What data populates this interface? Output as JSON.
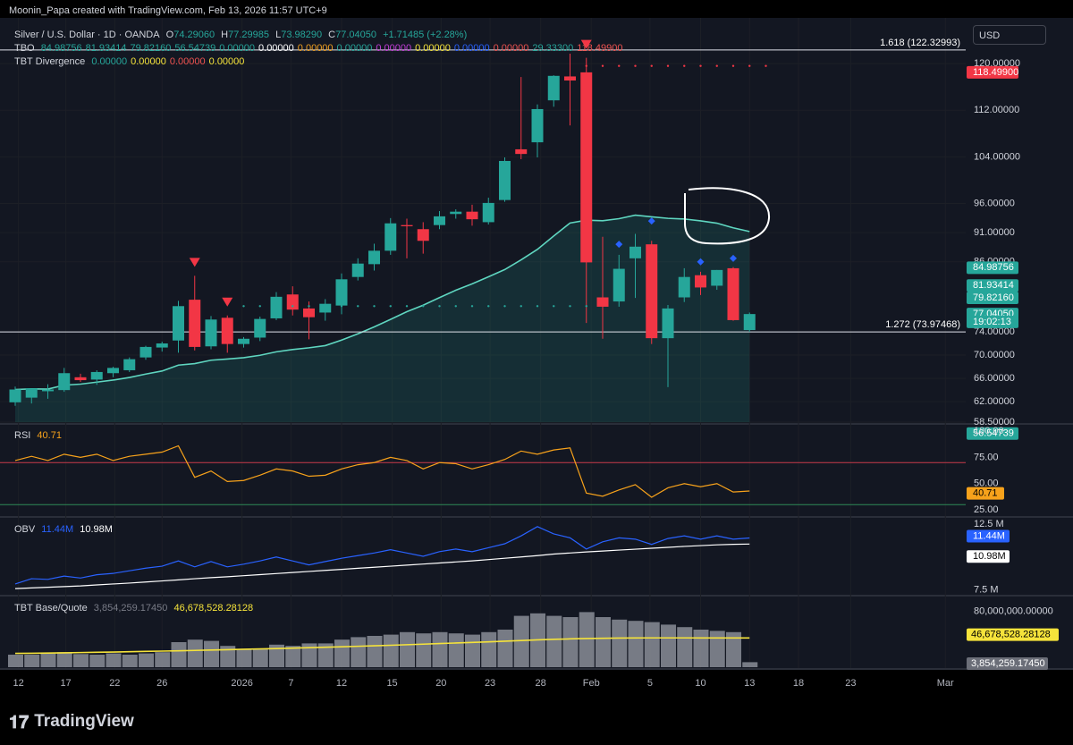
{
  "header": {
    "attribution": "Moonin_Papa created with TradingView.com, Feb 13, 2026 11:57 UTC+9",
    "symbol": "Silver / U.S. Dollar · 1D · OANDA",
    "o_label": "O",
    "o": "74.29060",
    "h_label": "H",
    "h": "77.29985",
    "l_label": "L",
    "l": "73.98290",
    "c_label": "C",
    "c": "77.04050",
    "change": "+1.71485 (+2.28%)",
    "tbo_label": "TBO",
    "tbo_values": [
      {
        "v": "84.98756",
        "color": "#26a69a"
      },
      {
        "v": "81.93414",
        "color": "#26a69a"
      },
      {
        "v": "79.82160",
        "color": "#26a69a"
      },
      {
        "v": "56.54739",
        "color": "#26a69a"
      },
      {
        "v": "0.00000",
        "color": "#26a69a"
      },
      {
        "v": "0.00000",
        "color": "#ffffff"
      },
      {
        "v": "0.00000",
        "color": "#f0a020"
      },
      {
        "v": "0.00000",
        "color": "#26a69a"
      },
      {
        "v": "0.00000",
        "color": "#c33dd8"
      },
      {
        "v": "0.00000",
        "color": "#f5e33b"
      },
      {
        "v": "0.00000",
        "color": "#2962ff"
      },
      {
        "v": "0.00000",
        "color": "#ef5350"
      },
      {
        "v": "29.33300",
        "color": "#26a69a"
      },
      {
        "v": "118.49900",
        "color": "#ef5350"
      }
    ],
    "tbt_div_label": "TBT Divergence",
    "tbt_div_values": [
      {
        "v": "0.00000",
        "color": "#26a69a"
      },
      {
        "v": "0.00000",
        "color": "#f5e33b"
      },
      {
        "v": "0.00000",
        "color": "#ef5350"
      },
      {
        "v": "0.00000",
        "color": "#f5e33b"
      }
    ]
  },
  "currency_button": "USD",
  "brand": "TradingView",
  "colors": {
    "up": "#26a69a",
    "down": "#f23645",
    "ma": "#5fd6c0",
    "rsi": "#f7a21b",
    "obv": "#2962ff",
    "obv_ma": "#ffffff",
    "vol_ma": "#f5e33b",
    "grid": "#1c1f26"
  },
  "chart_data": [
    {
      "type": "candlestick",
      "title": "Silver / U.S. Dollar · 1D · OANDA",
      "ylim": [
        58.5,
        126
      ],
      "y_ticks": [
        "120.00000",
        "112.00000",
        "104.00000",
        "96.00000",
        "91.00000",
        "86.00000",
        "74.00000",
        "70.00000",
        "66.00000",
        "62.00000",
        "58.50000"
      ],
      "x_ticks": [
        "12",
        "17",
        "22",
        "26",
        "2026",
        "7",
        "12",
        "15",
        "20",
        "23",
        "28",
        "Feb",
        "5",
        "10",
        "13",
        "18",
        "23",
        "Mar"
      ],
      "candles": [
        {
          "d": "Dec 11",
          "o": 61.9,
          "h": 64.6,
          "l": 61.3,
          "c": 64.1
        },
        {
          "d": "Dec 12",
          "o": 62.7,
          "h": 64.2,
          "l": 61.7,
          "c": 64.3
        },
        {
          "d": "Dec 15",
          "o": 63.8,
          "h": 65.0,
          "l": 62.5,
          "c": 64.1
        },
        {
          "d": "Dec 16",
          "o": 64.0,
          "h": 67.8,
          "l": 63.7,
          "c": 66.9
        },
        {
          "d": "Dec 17",
          "o": 66.2,
          "h": 66.8,
          "l": 65.4,
          "c": 65.7
        },
        {
          "d": "Dec 18",
          "o": 65.8,
          "h": 67.4,
          "l": 64.9,
          "c": 67.1
        },
        {
          "d": "Dec 19",
          "o": 66.9,
          "h": 68.0,
          "l": 66.2,
          "c": 67.8
        },
        {
          "d": "Dec 22",
          "o": 67.4,
          "h": 69.6,
          "l": 67.1,
          "c": 69.3
        },
        {
          "d": "Dec 23",
          "o": 69.6,
          "h": 71.6,
          "l": 69.2,
          "c": 71.4
        },
        {
          "d": "Dec 24",
          "o": 71.3,
          "h": 72.3,
          "l": 70.6,
          "c": 72.0
        },
        {
          "d": "Dec 26",
          "o": 72.5,
          "h": 79.3,
          "l": 70.4,
          "c": 78.4
        },
        {
          "d": "Dec 29",
          "o": 79.5,
          "h": 83.6,
          "l": 70.8,
          "c": 71.4
        },
        {
          "d": "Dec 30",
          "o": 71.5,
          "h": 76.7,
          "l": 71.0,
          "c": 76.1
        },
        {
          "d": "Dec 31",
          "o": 76.4,
          "h": 76.8,
          "l": 70.4,
          "c": 71.9
        },
        {
          "d": "Jan 1",
          "o": 71.9,
          "h": 73.1,
          "l": 71.3,
          "c": 72.8
        },
        {
          "d": "Jan 2",
          "o": 73.0,
          "h": 76.6,
          "l": 72.4,
          "c": 76.2
        },
        {
          "d": "Jan 5",
          "o": 76.3,
          "h": 80.8,
          "l": 76.0,
          "c": 80.0
        },
        {
          "d": "Jan 6",
          "o": 80.4,
          "h": 81.8,
          "l": 76.8,
          "c": 77.8
        },
        {
          "d": "Jan 7",
          "o": 78.0,
          "h": 79.2,
          "l": 72.7,
          "c": 76.5
        },
        {
          "d": "Jan 8",
          "o": 77.3,
          "h": 79.6,
          "l": 75.9,
          "c": 78.8
        },
        {
          "d": "Jan 9",
          "o": 78.5,
          "h": 84.0,
          "l": 77.0,
          "c": 83.0
        },
        {
          "d": "Jan 12",
          "o": 83.4,
          "h": 86.6,
          "l": 82.8,
          "c": 85.7
        },
        {
          "d": "Jan 13",
          "o": 85.6,
          "h": 89.1,
          "l": 84.5,
          "c": 87.9
        },
        {
          "d": "Jan 14",
          "o": 87.9,
          "h": 93.5,
          "l": 87.2,
          "c": 92.6
        },
        {
          "d": "Jan 15",
          "o": 92.3,
          "h": 93.4,
          "l": 86.6,
          "c": 92.1
        },
        {
          "d": "Jan 16",
          "o": 91.6,
          "h": 92.8,
          "l": 87.4,
          "c": 89.6
        },
        {
          "d": "Jan 19",
          "o": 92.3,
          "h": 94.7,
          "l": 91.6,
          "c": 93.8
        },
        {
          "d": "Jan 20",
          "o": 94.2,
          "h": 95.0,
          "l": 93.4,
          "c": 94.6
        },
        {
          "d": "Jan 21",
          "o": 94.6,
          "h": 95.8,
          "l": 92.2,
          "c": 93.3
        },
        {
          "d": "Jan 22",
          "o": 92.8,
          "h": 97.0,
          "l": 92.4,
          "c": 96.1
        },
        {
          "d": "Jan 23",
          "o": 96.6,
          "h": 103.9,
          "l": 96.3,
          "c": 103.3
        },
        {
          "d": "Jan 26",
          "o": 105.3,
          "h": 117.7,
          "l": 103.6,
          "c": 104.5
        },
        {
          "d": "Jan 27",
          "o": 106.5,
          "h": 113.0,
          "l": 103.9,
          "c": 112.2
        },
        {
          "d": "Jan 28",
          "o": 113.7,
          "h": 118.0,
          "l": 112.6,
          "c": 117.9
        },
        {
          "d": "Jan 29",
          "o": 117.8,
          "h": 121.7,
          "l": 109.4,
          "c": 117.1
        },
        {
          "d": "Jan 30",
          "o": 118.5,
          "h": 121.0,
          "l": 75.5,
          "c": 85.9
        },
        {
          "d": "Feb 2",
          "o": 79.9,
          "h": 90.3,
          "l": 72.8,
          "c": 78.3
        },
        {
          "d": "Feb 3",
          "o": 79.2,
          "h": 87.2,
          "l": 78.3,
          "c": 84.8
        },
        {
          "d": "Feb 4",
          "o": 86.6,
          "h": 90.8,
          "l": 79.8,
          "c": 88.6
        },
        {
          "d": "Feb 5",
          "o": 89.0,
          "h": 89.6,
          "l": 71.9,
          "c": 72.9
        },
        {
          "d": "Feb 6",
          "o": 72.9,
          "h": 78.6,
          "l": 64.5,
          "c": 78.0
        },
        {
          "d": "Feb 9",
          "o": 79.9,
          "h": 84.9,
          "l": 79.1,
          "c": 83.4
        },
        {
          "d": "Feb 10",
          "o": 83.7,
          "h": 84.3,
          "l": 80.3,
          "c": 81.6
        },
        {
          "d": "Feb 11",
          "o": 81.9,
          "h": 84.6,
          "l": 81.2,
          "c": 84.6
        },
        {
          "d": "Feb 12",
          "o": 84.9,
          "h": 85.1,
          "l": 75.9,
          "c": 76.0
        },
        {
          "d": "Feb 13",
          "o": 74.2906,
          "h": 77.29985,
          "l": 73.9829,
          "c": 77.0405
        }
      ],
      "fib_levels": [
        {
          "label": "1.618 (122.32993)",
          "value": 122.32993
        },
        {
          "label": "1.272 (73.97468)",
          "value": 73.97468
        }
      ],
      "price_tags": [
        {
          "label": "118.49900",
          "value": 118.499,
          "color": "#f23645",
          "text": "#ffffff"
        },
        {
          "label": "84.98756",
          "value": 84.98756,
          "color": "#26a69a",
          "text": "#ffffff"
        },
        {
          "label": "81.93414",
          "value": 81.93414,
          "color": "#26a69a",
          "text": "#ffffff"
        },
        {
          "label": "79.82160",
          "value": 79.8216,
          "color": "#26a69a",
          "text": "#ffffff"
        },
        {
          "label": "77.04050",
          "value": 77.0405,
          "color": "#26a69a",
          "text": "#ffffff"
        },
        {
          "label": "19:02:13",
          "value": 75.7,
          "color": "#26a69a",
          "text": "#ffffff"
        },
        {
          "label": "56.54739",
          "value": 56.54739,
          "color": "#26a69a",
          "text": "#ffffff"
        }
      ]
    },
    {
      "type": "line",
      "title": "RSI",
      "value": "40.71",
      "ylim": [
        20,
        100
      ],
      "y_ticks": [
        "100.00",
        "75.00",
        "50.00",
        "25.00"
      ],
      "bands": [
        70,
        30
      ],
      "values": [
        72,
        76,
        72,
        78,
        75,
        78,
        72,
        76,
        78,
        80,
        86,
        56,
        62,
        52,
        53,
        58,
        64,
        62,
        57,
        58,
        64,
        68,
        70,
        75,
        72,
        64,
        70,
        69,
        64,
        68,
        73,
        81,
        78,
        82,
        84,
        41,
        38,
        44,
        49,
        37,
        46,
        50,
        47,
        50,
        42,
        43
      ]
    },
    {
      "type": "line",
      "title": "OBV",
      "series": [
        {
          "name": "OBV",
          "value": "11.44M",
          "color": "#2962ff",
          "values": [
            7.95,
            8.35,
            8.3,
            8.55,
            8.4,
            8.65,
            8.75,
            8.95,
            9.15,
            9.3,
            9.7,
            9.25,
            9.65,
            9.25,
            9.45,
            9.7,
            10.0,
            9.7,
            9.4,
            9.65,
            9.9,
            10.1,
            10.3,
            10.55,
            10.3,
            10.05,
            10.4,
            10.6,
            10.4,
            10.7,
            11.0,
            11.6,
            12.3,
            11.75,
            11.45,
            10.6,
            11.15,
            11.45,
            11.35,
            10.95,
            11.4,
            11.6,
            11.35,
            11.6,
            11.35,
            11.44
          ]
        },
        {
          "name": "OBV MA",
          "value": "10.98M",
          "color": "#ffffff",
          "values": [
            7.6,
            7.65,
            7.7,
            7.75,
            7.8,
            7.88,
            7.95,
            8.02,
            8.1,
            8.18,
            8.26,
            8.35,
            8.43,
            8.5,
            8.58,
            8.66,
            8.74,
            8.82,
            8.9,
            8.98,
            9.06,
            9.14,
            9.22,
            9.3,
            9.38,
            9.46,
            9.54,
            9.62,
            9.7,
            9.8,
            9.9,
            10.0,
            10.1,
            10.22,
            10.3,
            10.38,
            10.45,
            10.52,
            10.59,
            10.66,
            10.73,
            10.8,
            10.86,
            10.92,
            10.96,
            10.98
          ]
        }
      ],
      "ylim": [
        7.2,
        12.9
      ],
      "y_ticks": [
        "12.5 M",
        "7.5 M"
      ]
    },
    {
      "type": "bar",
      "title": "TBT Base/Quote",
      "series_values": [
        {
          "label": "3,854,259.17450",
          "color": "#787b86"
        },
        {
          "label": "46,678,528.28128",
          "color": "#f5e33b"
        }
      ],
      "y_ticks": [
        "80,000,000.00000"
      ],
      "ylim": [
        0,
        90000000
      ],
      "values": [
        20,
        20,
        22,
        24,
        21,
        20,
        22,
        20,
        22,
        24,
        40,
        44,
        42,
        34,
        28,
        30,
        36,
        34,
        38,
        38,
        44,
        48,
        50,
        52,
        56,
        54,
        56,
        54,
        52,
        56,
        60,
        82,
        86,
        82,
        80,
        88,
        80,
        76,
        74,
        72,
        68,
        64,
        60,
        58,
        56,
        8
      ],
      "ma_values": [
        22,
        22.3,
        22.6,
        23,
        23.4,
        23.8,
        24.2,
        24.7,
        25.2,
        25.7,
        26.2,
        26.8,
        27.4,
        28,
        28.6,
        29.2,
        29.8,
        30.5,
        31.2,
        31.9,
        32.6,
        33.4,
        34.2,
        35,
        35.9,
        36.8,
        37.7,
        38.6,
        39.5,
        40.5,
        41.5,
        42.6,
        43.6,
        44.5,
        45.2,
        45.8,
        46.2,
        46.5,
        46.7,
        46.8,
        46.8,
        46.8,
        46.7,
        46.7,
        46.7,
        46.68
      ]
    }
  ]
}
